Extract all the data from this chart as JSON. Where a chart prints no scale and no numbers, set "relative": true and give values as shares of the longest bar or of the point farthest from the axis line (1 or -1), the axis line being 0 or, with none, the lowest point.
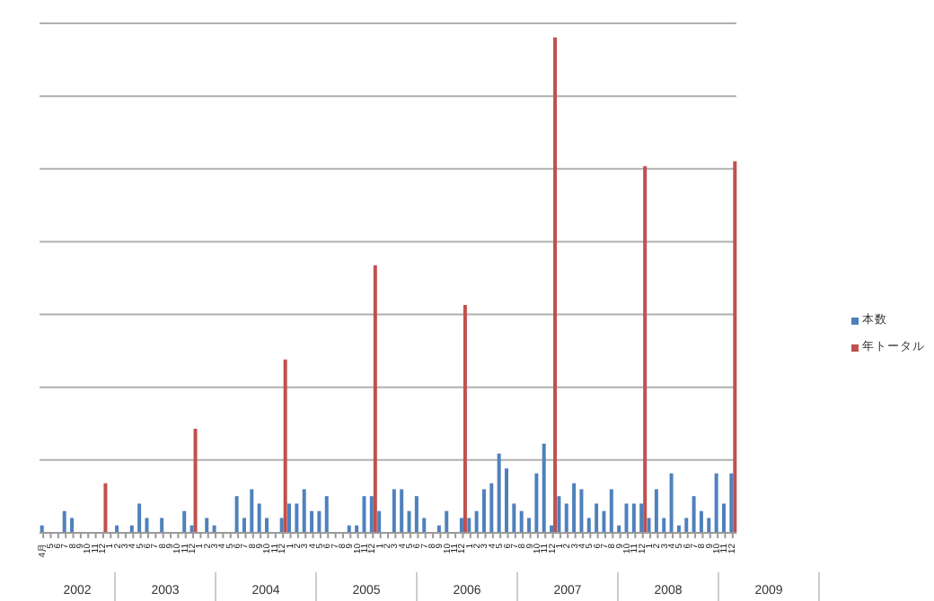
{
  "chart_data": {
    "type": "bar",
    "relative": true,
    "grid": "y",
    "legend": "right",
    "categories": [
      "4月",
      "5",
      "6",
      "7",
      "8",
      "9",
      "10",
      "11",
      "12",
      "1",
      "2",
      "3",
      "4",
      "5",
      "6",
      "7",
      "8",
      "9",
      "10",
      "11",
      "12",
      "1",
      "2",
      "3",
      "4",
      "5",
      "6",
      "7",
      "8",
      "9",
      "10",
      "11",
      "12",
      "1",
      "2",
      "3",
      "4",
      "5",
      "6",
      "7",
      "8",
      "9",
      "10",
      "11",
      "12",
      "1",
      "2",
      "3",
      "4",
      "5",
      "6",
      "7",
      "8",
      "9",
      "10",
      "11",
      "12",
      "1",
      "2",
      "3",
      "4",
      "5",
      "6",
      "7",
      "8",
      "9",
      "10",
      "11",
      "12",
      "1",
      "2",
      "3",
      "4",
      "5",
      "6",
      "7",
      "8",
      "9",
      "10",
      "11",
      "12",
      "1",
      "2",
      "3",
      "4",
      "5",
      "6",
      "7",
      "8",
      "9",
      "10",
      "11",
      "12"
    ],
    "annotations": [
      "2002",
      "2003",
      "2004",
      "2005",
      "2006",
      "2007",
      "2008",
      "2009"
    ],
    "series": [
      {
        "name": "本数",
        "color": "#4f81bd",
        "values": [
          0.015,
          0,
          0,
          0.044,
          0.03,
          0,
          0,
          0,
          0,
          0,
          0.015,
          0,
          0.015,
          0.059,
          0.03,
          0,
          0.03,
          0,
          0,
          0.044,
          0.015,
          0,
          0.03,
          0.015,
          0,
          0,
          0.074,
          0.03,
          0.088,
          0.059,
          0.03,
          0,
          0.03,
          0.059,
          0.059,
          0.088,
          0.044,
          0.044,
          0.074,
          0,
          0,
          0.015,
          0.015,
          0.074,
          0.074,
          0.044,
          0,
          0.088,
          0.088,
          0.044,
          0.074,
          0.03,
          0,
          0.015,
          0.044,
          0,
          0.03,
          0.03,
          0.044,
          0.088,
          0.1,
          0.16,
          0.13,
          0.059,
          0.044,
          0.03,
          0.12,
          0.18,
          0.015,
          0.074,
          0.059,
          0.1,
          0.088,
          0.03,
          0.059,
          0.044,
          0.088,
          0.015,
          0.059,
          0.059,
          0.059,
          0.03,
          0.088,
          0.03,
          0.12,
          0.015,
          0.03,
          0.074,
          0.044,
          0.03,
          0.12,
          0.059,
          0.12
        ]
      },
      {
        "name": "年トータル",
        "color": "#c0504d",
        "values": [
          null,
          null,
          null,
          null,
          null,
          null,
          null,
          null,
          0.1,
          null,
          null,
          null,
          null,
          null,
          null,
          null,
          null,
          null,
          null,
          null,
          0.21,
          null,
          null,
          null,
          null,
          null,
          null,
          null,
          null,
          null,
          null,
          null,
          0.35,
          null,
          null,
          null,
          null,
          null,
          null,
          null,
          null,
          null,
          null,
          null,
          0.54,
          null,
          null,
          null,
          null,
          null,
          null,
          null,
          null,
          null,
          null,
          null,
          0.46,
          null,
          null,
          null,
          null,
          null,
          null,
          null,
          null,
          null,
          null,
          null,
          1,
          null,
          null,
          null,
          null,
          null,
          null,
          null,
          null,
          null,
          null,
          null,
          0.74,
          null,
          null,
          null,
          null,
          null,
          null,
          null,
          null,
          null,
          null,
          null,
          0.75
        ]
      }
    ]
  }
}
